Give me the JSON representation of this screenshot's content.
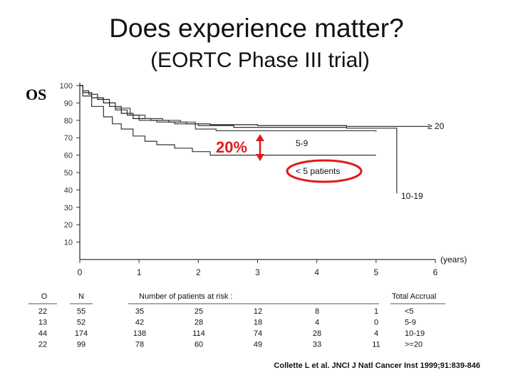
{
  "title": "Does experience matter?",
  "subtitle": "(EORTC Phase III trial)",
  "citation": "Collette L et al. JNCI J Natl Cancer Inst 1999;91:839-846",
  "chart_data": {
    "type": "line",
    "ylabel": "OS",
    "xunit_label": "(years)",
    "xlim": [
      0,
      6
    ],
    "ylim": [
      0,
      100
    ],
    "yticks": [
      "100",
      "90",
      "80",
      "70",
      "60",
      "50",
      "40",
      "30",
      "20",
      "10"
    ],
    "xticks": [
      "0",
      "1",
      "2",
      "3",
      "4",
      "5",
      "6"
    ],
    "series": [
      {
        "name": "≥ 20",
        "points": [
          [
            0,
            100
          ],
          [
            0.05,
            97
          ],
          [
            0.15,
            95
          ],
          [
            0.3,
            92
          ],
          [
            0.5,
            88
          ],
          [
            0.7,
            84
          ],
          [
            0.9,
            81
          ],
          [
            1.2,
            80
          ],
          [
            1.5,
            79
          ],
          [
            1.8,
            78
          ],
          [
            2.2,
            77.5
          ],
          [
            3.0,
            77
          ],
          [
            4.5,
            76.5
          ],
          [
            5.9,
            76.5
          ]
        ]
      },
      {
        "name": "5-9",
        "points": [
          [
            0,
            100
          ],
          [
            0.05,
            96
          ],
          [
            0.2,
            93
          ],
          [
            0.4,
            90
          ],
          [
            0.6,
            87
          ],
          [
            0.85,
            83
          ],
          [
            1.1,
            81
          ],
          [
            1.4,
            80
          ],
          [
            1.7,
            79
          ],
          [
            1.95,
            75
          ],
          [
            2.3,
            74
          ],
          [
            3.5,
            74
          ],
          [
            5.0,
            74
          ],
          [
            5.0,
            73.5
          ]
        ]
      },
      {
        "name": "10-19",
        "points": [
          [
            0,
            100
          ],
          [
            0.05,
            96
          ],
          [
            0.2,
            93
          ],
          [
            0.4,
            90
          ],
          [
            0.6,
            86
          ],
          [
            0.8,
            83
          ],
          [
            1.0,
            80
          ],
          [
            1.3,
            79
          ],
          [
            1.6,
            78
          ],
          [
            2.0,
            77
          ],
          [
            2.6,
            76
          ],
          [
            3.4,
            76
          ],
          [
            4.5,
            75.5
          ],
          [
            5.35,
            75.5
          ],
          [
            5.35,
            50
          ],
          [
            5.35,
            38
          ]
        ]
      },
      {
        "name": "< 5 patients",
        "points": [
          [
            0,
            100
          ],
          [
            0.05,
            94
          ],
          [
            0.2,
            88
          ],
          [
            0.4,
            82
          ],
          [
            0.55,
            78
          ],
          [
            0.7,
            75
          ],
          [
            0.9,
            71
          ],
          [
            1.1,
            68
          ],
          [
            1.3,
            66
          ],
          [
            1.6,
            64
          ],
          [
            1.9,
            62
          ],
          [
            2.2,
            60
          ],
          [
            3.0,
            60
          ],
          [
            4.5,
            60
          ],
          [
            5.0,
            60
          ]
        ]
      }
    ],
    "annotations": {
      "difference": "20%",
      "label_5_9": "5-9",
      "label_ge20": "≥ 20",
      "label_lt5": "< 5 patients",
      "label_10_19": "10-19"
    },
    "risk_table": {
      "header_O": "O",
      "header_N": "N",
      "header_mid": "Number of patients at risk :",
      "header_total": "Total Accrual",
      "rows": [
        {
          "O": "22",
          "N": "55",
          "risk": [
            "35",
            "25",
            "12",
            "8",
            "1"
          ],
          "group": "<5"
        },
        {
          "O": "13",
          "N": "52",
          "risk": [
            "42",
            "28",
            "18",
            "4",
            "0"
          ],
          "group": "5-9"
        },
        {
          "O": "44",
          "N": "174",
          "risk": [
            "138",
            "114",
            "74",
            "28",
            "4"
          ],
          "group": "10-19"
        },
        {
          "O": "22",
          "N": "99",
          "risk": [
            "78",
            "60",
            "49",
            "33",
            "11"
          ],
          "group": ">=20"
        }
      ]
    }
  }
}
